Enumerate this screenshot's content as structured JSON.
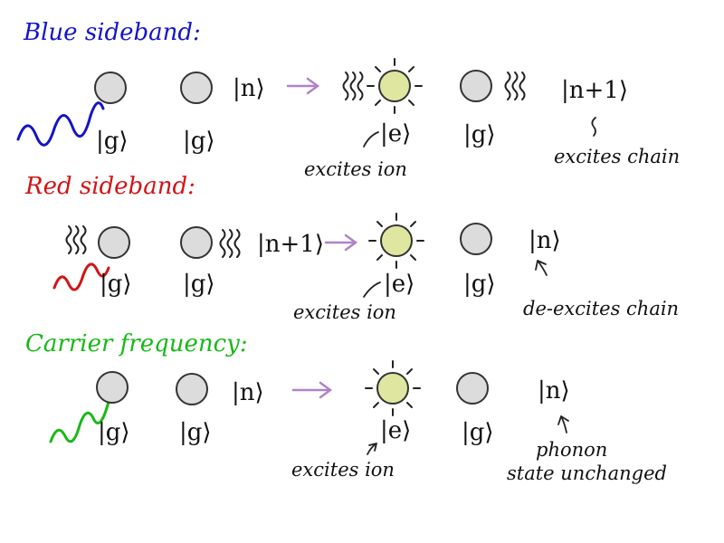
{
  "headings": {
    "blue": "Blue sideband:",
    "red": "Red sideband:",
    "carrier": "Carrier frequency:"
  },
  "colors": {
    "blue": "#1414c8",
    "red": "#d21414",
    "green": "#18b818",
    "arrow": "#b083c9",
    "ion_ground": "#dcdcdc",
    "ion_excited": "#dfe6a0"
  },
  "rows": {
    "blue": {
      "ket_g1": "|g⟩",
      "ket_g2": "|g⟩",
      "chain_before": "|n⟩",
      "ket_e": "|e⟩",
      "ket_g3": "|g⟩",
      "chain_after": "|n+1⟩",
      "note_ion": "excites ion",
      "note_chain": "excites chain"
    },
    "red": {
      "ket_g1": "|g⟩",
      "ket_g2": "|g⟩",
      "chain_before": "|n+1⟩",
      "ket_e": "|e⟩",
      "ket_g3": "|g⟩",
      "chain_after": "|n⟩",
      "note_ion": "excites ion",
      "note_chain": "de-excites chain"
    },
    "carrier": {
      "ket_g1": "|g⟩",
      "ket_g2": "|g⟩",
      "chain_before": "|n⟩",
      "ket_e": "|e⟩",
      "ket_g3": "|g⟩",
      "chain_after": "|n⟩",
      "note_ion": "excites ion",
      "note_chain_1": "phonon",
      "note_chain_2": "state unchanged"
    }
  }
}
